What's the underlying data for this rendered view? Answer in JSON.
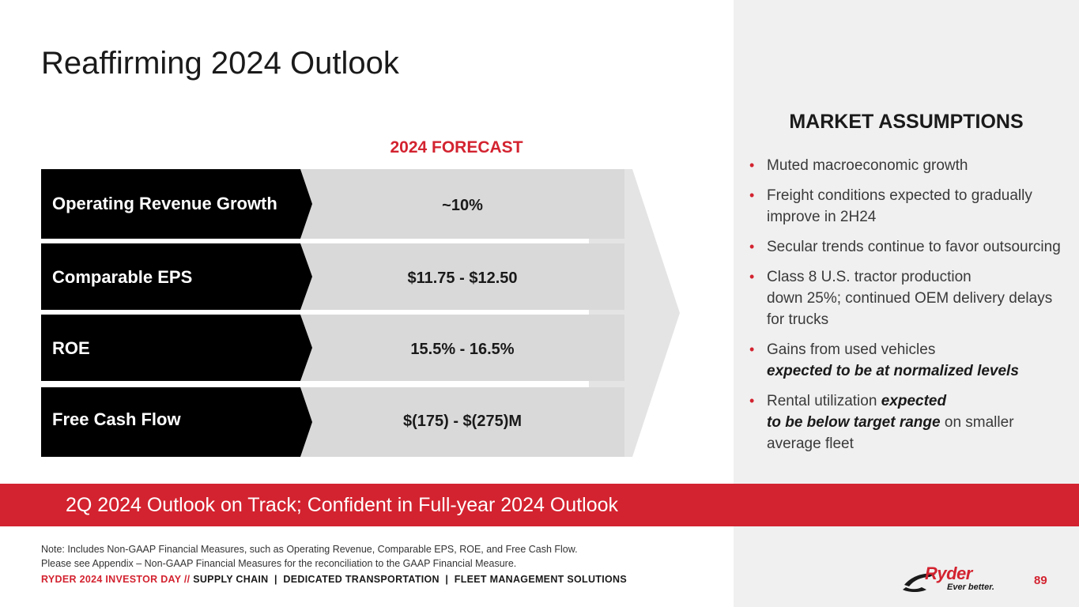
{
  "slide": {
    "title": "Reaffirming 2024 Outlook",
    "page_number": "89"
  },
  "forecast": {
    "header": "2024 FORECAST",
    "rows": [
      {
        "label": "Operating Revenue Growth",
        "value": "~10%"
      },
      {
        "label": "Comparable EPS",
        "value": "$11.75 - $12.50"
      },
      {
        "label": "ROE",
        "value": "15.5% - 16.5%"
      },
      {
        "label": "Free Cash Flow",
        "value": "$(175) - $(275)M"
      }
    ]
  },
  "assumptions": {
    "title": "MARKET ASSUMPTIONS",
    "items": [
      {
        "text": "Muted macroeconomic growth"
      },
      {
        "text": "Freight conditions expected to gradually improve in 2H24"
      },
      {
        "text": "Secular trends continue to favor outsourcing"
      },
      {
        "text_a": "Class 8 U.S. tractor production",
        "text_b": "down 25%; continued OEM delivery delays for trucks"
      },
      {
        "text_a": "Gains from used vehicles",
        "emph": "expected to be at normalized levels"
      },
      {
        "text_a": "Rental utilization",
        "emph_a": "expected",
        "emph_b": "to be below target range",
        "text_b": "on smaller average fleet"
      }
    ]
  },
  "banner": {
    "text": "2Q 2024 Outlook on Track; Confident in Full-year 2024 Outlook"
  },
  "note": {
    "line1": "Note: Includes Non-GAAP Financial Measures, such as Operating Revenue, Comparable EPS, ROE, and Free Cash Flow.",
    "line2": "Please see Appendix – Non-GAAP Financial Measures for the reconciliation to the GAAP Financial Measure."
  },
  "footer": {
    "event": "RYDER 2024 INVESTOR DAY",
    "separator": "//",
    "segments": "SUPPLY CHAIN  |  DEDICATED TRANSPORTATION  |  FLEET MANAGEMENT SOLUTIONS"
  },
  "logo": {
    "name": "Ryder",
    "tagline": "Ever better."
  },
  "colors": {
    "accent": "#d32330",
    "panel": "#f0f0f0",
    "label_bg": "#000000",
    "value_bg": "#d9d9d9"
  }
}
